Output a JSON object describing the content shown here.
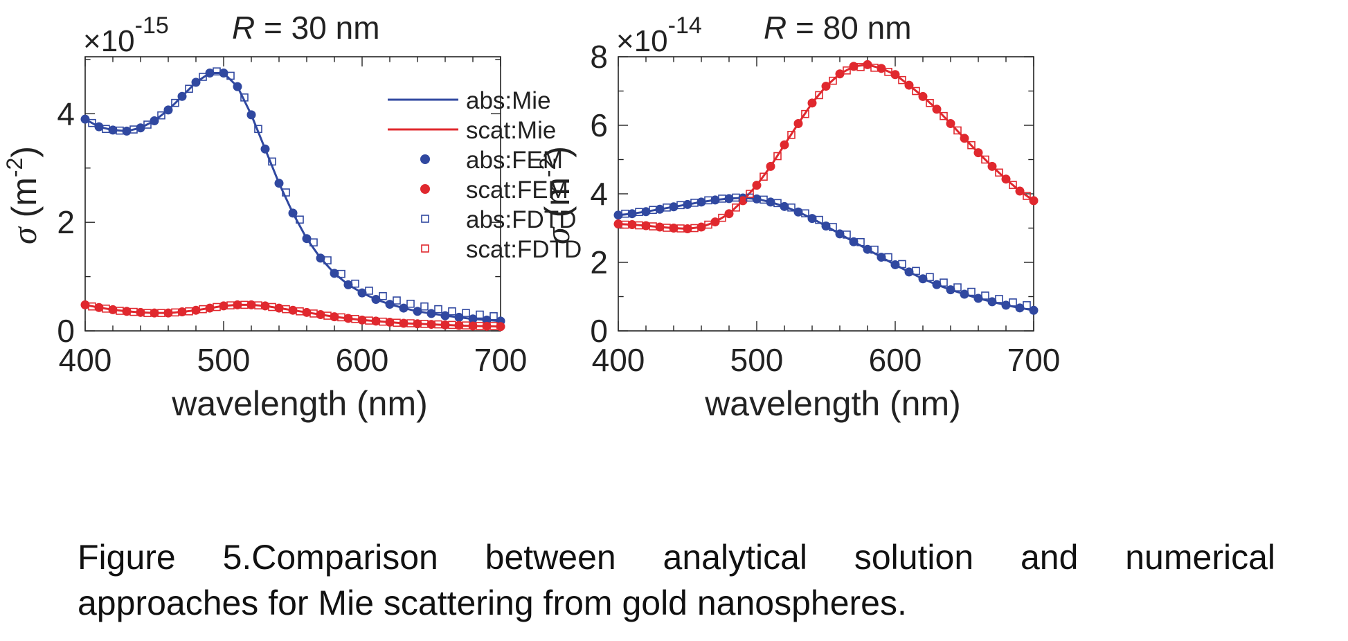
{
  "caption": {
    "line1_words": [
      "Figure",
      "5.Comparison",
      "between",
      "analytical",
      "solution",
      "and",
      "numerical"
    ],
    "line2": "approaches for Mie scattering from gold nanospheres."
  },
  "colors": {
    "abs": "#3048a0",
    "scat": "#e0282e"
  },
  "chart_data": [
    {
      "type": "line",
      "title_var": "R",
      "title_rest": " = 30 nm",
      "exponent_prefix": "×10",
      "exponent": "-15",
      "xlabel": "wavelength (nm)",
      "ylabel_sym": "σ",
      "ylabel_unit": " (m",
      "ylabel_exp": "-2",
      "ylabel_close": ")",
      "xlim": [
        400,
        700
      ],
      "ylim": [
        0,
        5.05
      ],
      "xticks": [
        400,
        500,
        600,
        700
      ],
      "xtick_labels": [
        "400",
        "500",
        "600",
        "700"
      ],
      "yticks": [
        0,
        2,
        4
      ],
      "ytick_labels": [
        "0",
        "2",
        "4"
      ],
      "legend": {
        "placement": "top-right",
        "entries": [
          {
            "label": "abs:Mie",
            "marker": "line",
            "color": "#3048a0"
          },
          {
            "label": "scat:Mie",
            "marker": "line",
            "color": "#e0282e"
          },
          {
            "label": "abs:FEM",
            "marker": "dot",
            "color": "#3048a0"
          },
          {
            "label": "scat:FEM",
            "marker": "dot",
            "color": "#e0282e"
          },
          {
            "label": "abs:FDTD",
            "marker": "square",
            "color": "#3048a0"
          },
          {
            "label": "scat:FDTD",
            "marker": "square",
            "color": "#e0282e"
          }
        ]
      },
      "x": [
        400,
        410,
        420,
        430,
        440,
        450,
        460,
        470,
        480,
        490,
        500,
        510,
        520,
        530,
        540,
        550,
        560,
        570,
        580,
        590,
        600,
        610,
        620,
        630,
        640,
        650,
        660,
        670,
        680,
        690,
        700
      ],
      "series": [
        {
          "name": "abs:Mie",
          "kind": "line",
          "color": "#3048a0",
          "values": [
            3.9,
            3.76,
            3.7,
            3.68,
            3.74,
            3.87,
            4.07,
            4.32,
            4.58,
            4.75,
            4.75,
            4.5,
            3.98,
            3.35,
            2.72,
            2.17,
            1.7,
            1.34,
            1.06,
            0.85,
            0.7,
            0.58,
            0.49,
            0.42,
            0.36,
            0.32,
            0.28,
            0.25,
            0.22,
            0.2,
            0.18
          ]
        },
        {
          "name": "scat:Mie",
          "kind": "line",
          "color": "#e0282e",
          "values": [
            0.48,
            0.43,
            0.39,
            0.36,
            0.34,
            0.33,
            0.33,
            0.35,
            0.38,
            0.42,
            0.46,
            0.48,
            0.48,
            0.46,
            0.42,
            0.38,
            0.34,
            0.3,
            0.26,
            0.23,
            0.2,
            0.18,
            0.16,
            0.14,
            0.13,
            0.12,
            0.11,
            0.1,
            0.09,
            0.085,
            0.08
          ]
        },
        {
          "name": "abs:FEM",
          "kind": "dot",
          "color": "#3048a0",
          "values": [
            3.9,
            3.76,
            3.7,
            3.68,
            3.74,
            3.87,
            4.07,
            4.32,
            4.58,
            4.75,
            4.75,
            4.5,
            3.98,
            3.35,
            2.72,
            2.17,
            1.7,
            1.34,
            1.06,
            0.85,
            0.7,
            0.58,
            0.49,
            0.42,
            0.36,
            0.32,
            0.28,
            0.25,
            0.22,
            0.2,
            0.18
          ]
        },
        {
          "name": "scat:FEM",
          "kind": "dot",
          "color": "#e0282e",
          "values": [
            0.48,
            0.43,
            0.39,
            0.36,
            0.34,
            0.33,
            0.33,
            0.35,
            0.38,
            0.42,
            0.46,
            0.48,
            0.48,
            0.46,
            0.42,
            0.38,
            0.34,
            0.3,
            0.26,
            0.23,
            0.2,
            0.18,
            0.16,
            0.14,
            0.13,
            0.12,
            0.11,
            0.1,
            0.09,
            0.085,
            0.08
          ]
        },
        {
          "name": "abs:FDTD",
          "kind": "square",
          "color": "#3048a0",
          "x": [
            405,
            415,
            425,
            435,
            445,
            455,
            465,
            475,
            485,
            495,
            505,
            515,
            525,
            535,
            545,
            555,
            565,
            575,
            585,
            595,
            605,
            615,
            625,
            635,
            645,
            655,
            665,
            675,
            685,
            695
          ],
          "values": [
            3.83,
            3.72,
            3.69,
            3.71,
            3.8,
            3.97,
            4.2,
            4.46,
            4.68,
            4.78,
            4.7,
            4.3,
            3.72,
            3.12,
            2.55,
            2.05,
            1.63,
            1.3,
            1.05,
            0.87,
            0.74,
            0.64,
            0.56,
            0.5,
            0.45,
            0.4,
            0.36,
            0.33,
            0.3,
            0.27
          ]
        },
        {
          "name": "scat:FDTD",
          "kind": "square",
          "color": "#e0282e",
          "x": [
            405,
            415,
            425,
            435,
            445,
            455,
            465,
            475,
            485,
            495,
            505,
            515,
            525,
            535,
            545,
            555,
            565,
            575,
            585,
            595,
            605,
            615,
            625,
            635,
            645,
            655,
            665,
            675,
            685,
            695
          ],
          "values": [
            0.45,
            0.41,
            0.37,
            0.35,
            0.33,
            0.33,
            0.34,
            0.36,
            0.4,
            0.44,
            0.47,
            0.48,
            0.47,
            0.44,
            0.4,
            0.36,
            0.32,
            0.28,
            0.25,
            0.22,
            0.19,
            0.17,
            0.15,
            0.14,
            0.13,
            0.12,
            0.11,
            0.1,
            0.09,
            0.09
          ]
        }
      ]
    },
    {
      "type": "line",
      "title_var": "R",
      "title_rest": " = 80 nm",
      "exponent_prefix": "×10",
      "exponent": "-14",
      "xlabel": "wavelength (nm)",
      "ylabel_sym": "σ",
      "ylabel_unit": " (m",
      "ylabel_exp": "-2",
      "ylabel_close": ")",
      "xlim": [
        400,
        700
      ],
      "ylim": [
        0,
        8
      ],
      "xticks": [
        400,
        500,
        600,
        700
      ],
      "xtick_labels": [
        "400",
        "500",
        "600",
        "700"
      ],
      "yticks": [
        0,
        2,
        4,
        6,
        8
      ],
      "ytick_labels": [
        "0",
        "2",
        "4",
        "6",
        "8"
      ],
      "x": [
        400,
        410,
        420,
        430,
        440,
        450,
        460,
        470,
        480,
        490,
        500,
        510,
        520,
        530,
        540,
        550,
        560,
        570,
        580,
        590,
        600,
        610,
        620,
        630,
        640,
        650,
        660,
        670,
        680,
        690,
        700
      ],
      "series": [
        {
          "name": "abs:Mie",
          "kind": "line",
          "color": "#3048a0",
          "values": [
            3.38,
            3.42,
            3.48,
            3.55,
            3.62,
            3.69,
            3.76,
            3.82,
            3.86,
            3.88,
            3.85,
            3.76,
            3.63,
            3.47,
            3.28,
            3.06,
            2.83,
            2.6,
            2.38,
            2.15,
            1.93,
            1.72,
            1.52,
            1.35,
            1.2,
            1.07,
            0.95,
            0.85,
            0.75,
            0.67,
            0.6
          ]
        },
        {
          "name": "scat:Mie",
          "kind": "line",
          "color": "#e0282e",
          "values": [
            3.12,
            3.1,
            3.07,
            3.03,
            3.0,
            2.98,
            3.03,
            3.18,
            3.42,
            3.8,
            4.25,
            4.8,
            5.43,
            6.05,
            6.65,
            7.14,
            7.5,
            7.72,
            7.77,
            7.66,
            7.48,
            7.17,
            6.84,
            6.47,
            6.05,
            5.62,
            5.2,
            4.8,
            4.43,
            4.08,
            3.8
          ]
        },
        {
          "name": "abs:FEM",
          "kind": "dot",
          "color": "#3048a0",
          "values": [
            3.38,
            3.42,
            3.48,
            3.55,
            3.62,
            3.69,
            3.76,
            3.82,
            3.86,
            3.88,
            3.85,
            3.76,
            3.63,
            3.47,
            3.28,
            3.06,
            2.83,
            2.6,
            2.38,
            2.15,
            1.93,
            1.72,
            1.52,
            1.35,
            1.2,
            1.07,
            0.95,
            0.85,
            0.75,
            0.67,
            0.6
          ]
        },
        {
          "name": "scat:FEM",
          "kind": "dot",
          "color": "#e0282e",
          "values": [
            3.12,
            3.1,
            3.07,
            3.03,
            3.0,
            2.98,
            3.03,
            3.18,
            3.42,
            3.8,
            4.25,
            4.8,
            5.43,
            6.05,
            6.65,
            7.14,
            7.5,
            7.72,
            7.77,
            7.66,
            7.48,
            7.17,
            6.84,
            6.47,
            6.05,
            5.62,
            5.2,
            4.8,
            4.43,
            4.08,
            3.8
          ]
        },
        {
          "name": "abs:FDTD",
          "kind": "square",
          "color": "#3048a0",
          "x": [
            405,
            415,
            425,
            435,
            445,
            455,
            465,
            475,
            485,
            495,
            505,
            515,
            525,
            535,
            545,
            555,
            565,
            575,
            585,
            595,
            605,
            615,
            625,
            635,
            645,
            655,
            665,
            675,
            685,
            695
          ],
          "values": [
            3.42,
            3.47,
            3.53,
            3.6,
            3.67,
            3.74,
            3.81,
            3.86,
            3.89,
            3.89,
            3.83,
            3.73,
            3.6,
            3.43,
            3.24,
            3.03,
            2.81,
            2.59,
            2.37,
            2.15,
            1.95,
            1.75,
            1.57,
            1.41,
            1.27,
            1.14,
            1.03,
            0.93,
            0.83,
            0.75
          ]
        },
        {
          "name": "scat:FDTD",
          "kind": "square",
          "color": "#e0282e",
          "x": [
            405,
            415,
            425,
            435,
            445,
            455,
            465,
            475,
            485,
            495,
            505,
            515,
            525,
            535,
            545,
            555,
            565,
            575,
            585,
            595,
            605,
            615,
            625,
            635,
            645,
            655,
            665,
            675,
            685,
            695
          ],
          "values": [
            3.1,
            3.08,
            3.05,
            3.01,
            2.99,
            3.0,
            3.1,
            3.3,
            3.6,
            4.0,
            4.5,
            5.1,
            5.72,
            6.33,
            6.88,
            7.3,
            7.6,
            7.7,
            7.68,
            7.56,
            7.32,
            7.0,
            6.65,
            6.27,
            5.85,
            5.42,
            5.0,
            4.62,
            4.26,
            3.94
          ]
        }
      ]
    }
  ]
}
